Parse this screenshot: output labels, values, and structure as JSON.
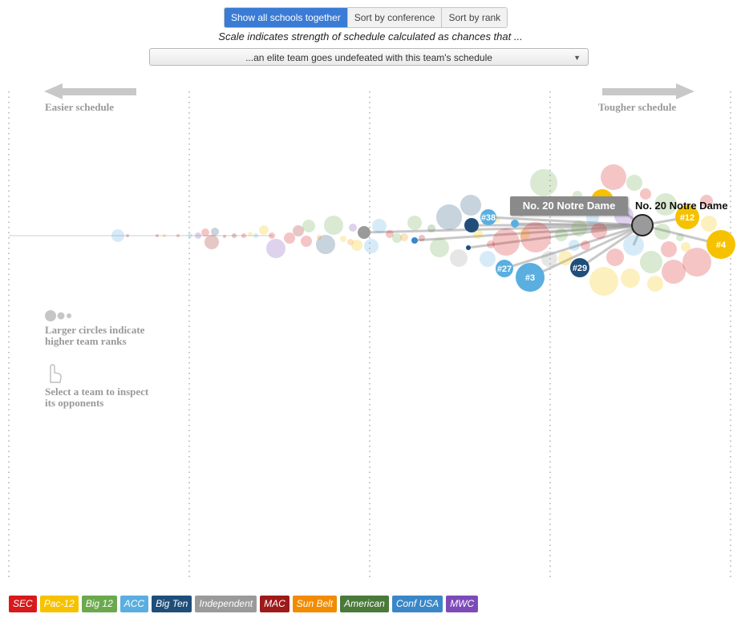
{
  "tabs": [
    {
      "label": "Show all schools together",
      "active": true
    },
    {
      "label": "Sort by conference",
      "active": false
    },
    {
      "label": "Sort by rank",
      "active": false
    }
  ],
  "subtitle": "Scale indicates strength of schedule calculated as chances that ...",
  "select": {
    "value": "...an elite team goes undefeated with this team's schedule"
  },
  "easier_label": "Easier schedule",
  "tougher_label": "Tougher schedule",
  "size_note": "Larger circles indicate higher team ranks",
  "select_note": "Select a team to inspect its opponents",
  "icons": {
    "arrow_left": "arrow-left-icon",
    "arrow_right": "arrow-right-icon",
    "size": "circle-size-icon",
    "hand": "hand-pointer-icon"
  },
  "tooltip": "No. 20 Notre Dame",
  "selected_team": {
    "label": "No. 20 Notre Dame",
    "conference": "Independent"
  },
  "legend": [
    {
      "label": "SEC",
      "color": "#d7191c"
    },
    {
      "label": "Pac-12",
      "color": "#f6c200"
    },
    {
      "label": "Big 12",
      "color": "#6ba94d"
    },
    {
      "label": "ACC",
      "color": "#5aaee0"
    },
    {
      "label": "Big Ten",
      "color": "#1f4e79"
    },
    {
      "label": "Independent",
      "color": "#9a9a9a"
    },
    {
      "label": "MAC",
      "color": "#9e1a1a"
    },
    {
      "label": "Sun Belt",
      "color": "#f28b00"
    },
    {
      "label": "American",
      "color": "#4a7a3a"
    },
    {
      "label": "Conf USA",
      "color": "#3a87c8"
    },
    {
      "label": "MWC",
      "color": "#7d4bb8"
    }
  ],
  "chart_data": {
    "type": "scatter",
    "title": "",
    "xlabel": "",
    "ylabel": "",
    "grid": true,
    "highlighted": [
      {
        "label": "#3",
        "conference": "ACC"
      },
      {
        "label": "#4",
        "conference": "Pac-12"
      },
      {
        "label": "#12",
        "conference": "Pac-12"
      },
      {
        "label": "#27",
        "conference": "ACC"
      },
      {
        "label": "#29",
        "conference": "Big Ten"
      },
      {
        "label": "#38",
        "conference": "ACC"
      }
    ]
  }
}
